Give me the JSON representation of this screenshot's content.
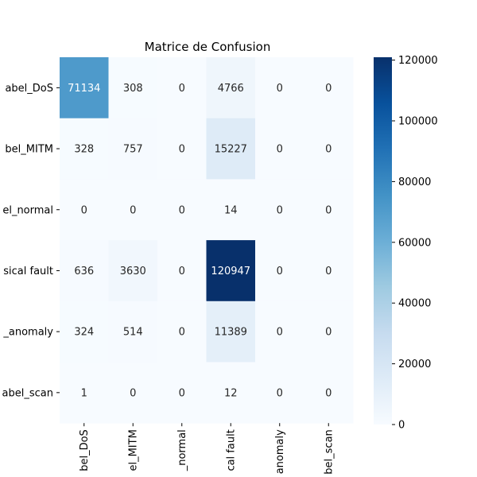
{
  "chart_data": {
    "type": "heatmap",
    "title": "Matrice de Confusion",
    "xlabel": "",
    "ylabel": "",
    "row_labels": [
      "abel_DoS",
      "bel_MITM",
      "el_normal",
      "sical fault",
      "_anomaly",
      "abel_scan"
    ],
    "col_labels": [
      "bel_DoS",
      "el_MITM",
      "_normal",
      "cal fault",
      "anomaly",
      "bel_scan"
    ],
    "values": [
      [
        71134,
        308,
        0,
        4766,
        0,
        0
      ],
      [
        328,
        757,
        0,
        15227,
        0,
        0
      ],
      [
        0,
        0,
        0,
        14,
        0,
        0
      ],
      [
        636,
        3630,
        0,
        120947,
        0,
        0
      ],
      [
        324,
        514,
        0,
        11389,
        0,
        0
      ],
      [
        1,
        0,
        0,
        12,
        0,
        0
      ]
    ],
    "colormap": "Blues",
    "colorbar": {
      "min": 0,
      "max": 120947,
      "ticks": [
        0,
        20000,
        40000,
        60000,
        80000,
        100000,
        120000
      ],
      "tick_labels": [
        "0",
        "20000",
        "40000",
        "60000",
        "80000",
        "100000",
        "120000"
      ]
    },
    "grid": false,
    "colors": {
      "low": "#f7fbff",
      "mid": "#6baed6",
      "high": "#08306b",
      "text_dark": "#262626",
      "text_light": "#ffffff"
    }
  }
}
